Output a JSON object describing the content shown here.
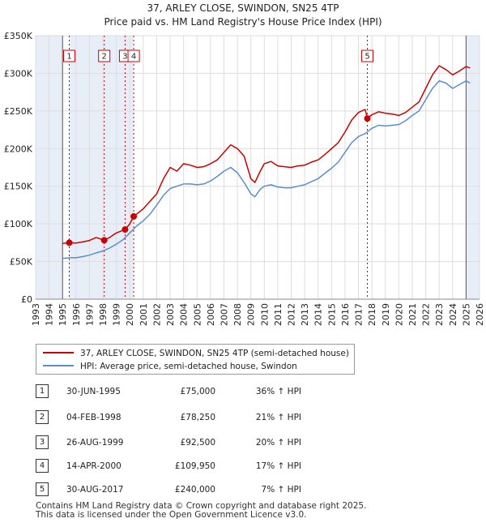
{
  "header": {
    "title_line1": "37, ARLEY CLOSE, SWINDON, SN25 4TP",
    "title_line2": "Price paid vs. HM Land Registry's House Price Index (HPI)"
  },
  "colors": {
    "price_line": "#cc0000",
    "hpi_line": "#5b8ec9",
    "marker_border": "#cc0000",
    "shade": "#e8eef8"
  },
  "chart_data": {
    "type": "line",
    "title": "37, ARLEY CLOSE, SWINDON, SN25 4TP — Price paid vs. HM Land Registry's House Price Index (HPI)",
    "xlim": [
      1993,
      2026
    ],
    "ylim": [
      0,
      350000
    ],
    "x_ticks": [
      "1993",
      "1994",
      "1995",
      "1996",
      "1997",
      "1998",
      "1999",
      "2000",
      "2001",
      "2002",
      "2003",
      "2004",
      "2005",
      "2006",
      "2007",
      "2008",
      "2009",
      "2010",
      "2011",
      "2012",
      "2013",
      "2014",
      "2015",
      "2016",
      "2017",
      "2018",
      "2019",
      "2020",
      "2021",
      "2022",
      "2023",
      "2024",
      "2025",
      "2026"
    ],
    "y_ticks": [
      {
        "value": 0,
        "label": "£0"
      },
      {
        "value": 50000,
        "label": "£50K"
      },
      {
        "value": 100000,
        "label": "£100K"
      },
      {
        "value": 150000,
        "label": "£150K"
      },
      {
        "value": 200000,
        "label": "£200K"
      },
      {
        "value": 250000,
        "label": "£250K"
      },
      {
        "value": 300000,
        "label": "£300K"
      },
      {
        "value": 350000,
        "label": "£350K"
      }
    ],
    "hpi_start": 1995.0,
    "future_start": 2025.0,
    "series": [
      {
        "name": "37, ARLEY CLOSE, SWINDON, SN25 4TP (semi-detached house)",
        "points": [
          [
            1995.0,
            74000
          ],
          [
            1995.5,
            75000
          ],
          [
            1996.0,
            74500
          ],
          [
            1996.5,
            76000
          ],
          [
            1997.0,
            78000
          ],
          [
            1997.5,
            82000
          ],
          [
            1998.1,
            78250
          ],
          [
            1998.5,
            82000
          ],
          [
            1999.0,
            88000
          ],
          [
            1999.65,
            92500
          ],
          [
            2000.0,
            100000
          ],
          [
            2000.29,
            109950
          ],
          [
            2001.0,
            120000
          ],
          [
            2002.0,
            140000
          ],
          [
            2002.5,
            160000
          ],
          [
            2003.0,
            175000
          ],
          [
            2003.5,
            170000
          ],
          [
            2004.0,
            180000
          ],
          [
            2004.5,
            178000
          ],
          [
            2005.0,
            175000
          ],
          [
            2005.5,
            176000
          ],
          [
            2006.0,
            180000
          ],
          [
            2006.5,
            185000
          ],
          [
            2007.0,
            195000
          ],
          [
            2007.5,
            205000
          ],
          [
            2008.0,
            200000
          ],
          [
            2008.5,
            190000
          ],
          [
            2009.0,
            160000
          ],
          [
            2009.3,
            155000
          ],
          [
            2009.7,
            170000
          ],
          [
            2010.0,
            180000
          ],
          [
            2010.5,
            183000
          ],
          [
            2011.0,
            177000
          ],
          [
            2011.5,
            176000
          ],
          [
            2012.0,
            175000
          ],
          [
            2012.5,
            177000
          ],
          [
            2013.0,
            178000
          ],
          [
            2013.5,
            182000
          ],
          [
            2014.0,
            185000
          ],
          [
            2014.5,
            192000
          ],
          [
            2015.0,
            200000
          ],
          [
            2015.5,
            208000
          ],
          [
            2016.0,
            222000
          ],
          [
            2016.5,
            238000
          ],
          [
            2017.0,
            248000
          ],
          [
            2017.5,
            252000
          ],
          [
            2017.66,
            240000
          ],
          [
            2018.0,
            245000
          ],
          [
            2018.5,
            249000
          ],
          [
            2019.0,
            247000
          ],
          [
            2019.5,
            246000
          ],
          [
            2020.0,
            244000
          ],
          [
            2020.5,
            248000
          ],
          [
            2021.0,
            255000
          ],
          [
            2021.5,
            262000
          ],
          [
            2022.0,
            280000
          ],
          [
            2022.5,
            298000
          ],
          [
            2023.0,
            310000
          ],
          [
            2023.5,
            305000
          ],
          [
            2024.0,
            298000
          ],
          [
            2024.5,
            303000
          ],
          [
            2025.0,
            309000
          ],
          [
            2025.3,
            307000
          ]
        ]
      },
      {
        "name": "HPI: Average price, semi-detached house, Swindon",
        "points": [
          [
            1995.0,
            54000
          ],
          [
            1995.5,
            55000
          ],
          [
            1996.0,
            55000
          ],
          [
            1996.5,
            56500
          ],
          [
            1997.0,
            58500
          ],
          [
            1997.5,
            61500
          ],
          [
            1998.0,
            64000
          ],
          [
            1998.5,
            68000
          ],
          [
            1999.0,
            73000
          ],
          [
            1999.5,
            79000
          ],
          [
            2000.0,
            88000
          ],
          [
            2000.5,
            97000
          ],
          [
            2001.0,
            104000
          ],
          [
            2001.5,
            113000
          ],
          [
            2002.0,
            125000
          ],
          [
            2002.5,
            138000
          ],
          [
            2003.0,
            147000
          ],
          [
            2003.5,
            150000
          ],
          [
            2004.0,
            153000
          ],
          [
            2004.5,
            153000
          ],
          [
            2005.0,
            152000
          ],
          [
            2005.5,
            153000
          ],
          [
            2006.0,
            157000
          ],
          [
            2006.5,
            163000
          ],
          [
            2007.0,
            170000
          ],
          [
            2007.5,
            175000
          ],
          [
            2008.0,
            168000
          ],
          [
            2008.5,
            155000
          ],
          [
            2009.0,
            140000
          ],
          [
            2009.3,
            136000
          ],
          [
            2009.7,
            146000
          ],
          [
            2010.0,
            150000
          ],
          [
            2010.5,
            152000
          ],
          [
            2011.0,
            149000
          ],
          [
            2011.5,
            148000
          ],
          [
            2012.0,
            148000
          ],
          [
            2012.5,
            150000
          ],
          [
            2013.0,
            152000
          ],
          [
            2013.5,
            156000
          ],
          [
            2014.0,
            160000
          ],
          [
            2014.5,
            167000
          ],
          [
            2015.0,
            174000
          ],
          [
            2015.5,
            182000
          ],
          [
            2016.0,
            195000
          ],
          [
            2016.5,
            208000
          ],
          [
            2017.0,
            216000
          ],
          [
            2017.5,
            220000
          ],
          [
            2018.0,
            227000
          ],
          [
            2018.5,
            231000
          ],
          [
            2019.0,
            230000
          ],
          [
            2019.5,
            231000
          ],
          [
            2020.0,
            232000
          ],
          [
            2020.5,
            237000
          ],
          [
            2021.0,
            244000
          ],
          [
            2021.5,
            250000
          ],
          [
            2022.0,
            265000
          ],
          [
            2022.5,
            280000
          ],
          [
            2023.0,
            290000
          ],
          [
            2023.5,
            287000
          ],
          [
            2024.0,
            280000
          ],
          [
            2024.5,
            285000
          ],
          [
            2025.0,
            290000
          ],
          [
            2025.3,
            287000
          ]
        ]
      }
    ],
    "sales": [
      {
        "label": "1",
        "x": 1995.5,
        "value": 75000
      },
      {
        "label": "2",
        "x": 1998.1,
        "value": 78250
      },
      {
        "label": "3",
        "x": 1999.65,
        "value": 92500
      },
      {
        "label": "4",
        "x": 2000.29,
        "value": 109950
      },
      {
        "label": "5",
        "x": 2017.66,
        "value": 240000
      }
    ]
  },
  "legend": {
    "items": [
      {
        "label": "37, ARLEY CLOSE, SWINDON, SN25 4TP (semi-detached house)"
      },
      {
        "label": "HPI: Average price, semi-detached house, Swindon"
      }
    ]
  },
  "transactions": [
    {
      "num": "1",
      "date": "30-JUN-1995",
      "price": "£75,000",
      "hpi": "36% ↑ HPI"
    },
    {
      "num": "2",
      "date": "04-FEB-1998",
      "price": "£78,250",
      "hpi": "21% ↑ HPI"
    },
    {
      "num": "3",
      "date": "26-AUG-1999",
      "price": "£92,500",
      "hpi": "20% ↑ HPI"
    },
    {
      "num": "4",
      "date": "14-APR-2000",
      "price": "£109,950",
      "hpi": "17% ↑ HPI"
    },
    {
      "num": "5",
      "date": "30-AUG-2017",
      "price": "£240,000",
      "hpi": "7% ↑ HPI"
    }
  ],
  "footer": {
    "line1": "Contains HM Land Registry data © Crown copyright and database right 2025.",
    "line2": "This data is licensed under the Open Government Licence v3.0."
  }
}
